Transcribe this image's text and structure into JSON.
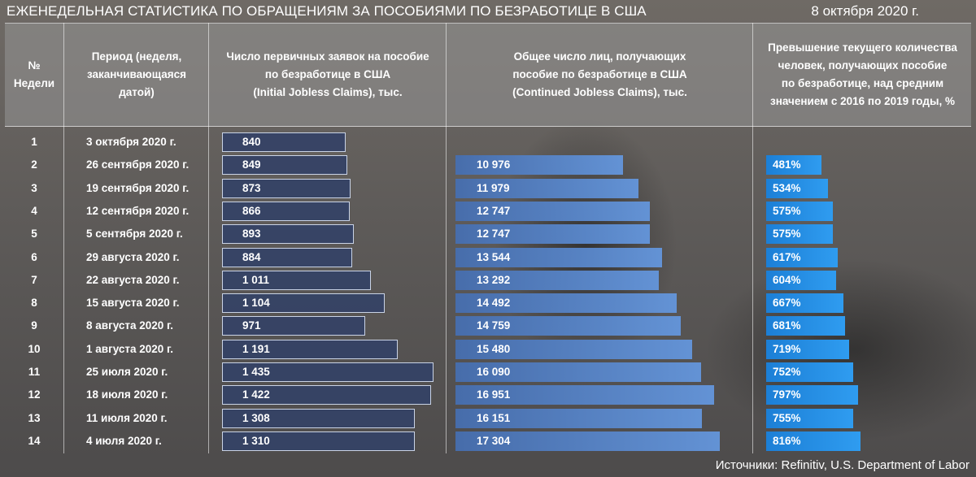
{
  "title": "ЕЖЕНЕДЕЛЬНАЯ СТАТИСТИКА ПО ОБРАЩЕНИЯМ ЗА ПОСОБИЯМИ ПО БЕЗРАБОТИЦЕ В США",
  "date": "8 октября 2020 г.",
  "headers": {
    "week_no": [
      "№",
      "Недели"
    ],
    "period": [
      "Период  (неделя,",
      "заканчивающаяся",
      "датой)"
    ],
    "initial": [
      "Число первичных заявок на пособие",
      "по безработице в США",
      "(Initial Jobless Claims), тыс."
    ],
    "continued": [
      "Общее число лиц, получающих",
      "пособие по безработице в США",
      "(Continued Jobless Claims), тыс."
    ],
    "excess": [
      "Превышение текущего количества",
      "человек, получающих пособие",
      "по безработице, над средним",
      "значением с 2016 по 2019 годы, %"
    ]
  },
  "source": "Источники: Refinitiv, U.S. Department of Labor",
  "colors": {
    "initial_bar": "#3e4d72",
    "continued_bar": "#5b87c8",
    "excess_bar": "#2a8de0"
  },
  "chart_data": {
    "type": "table",
    "rows": [
      {
        "week": "1",
        "period": "3 октября 2020 г.",
        "initial": 840,
        "initial_label": "840",
        "continued": null,
        "continued_label": "",
        "excess": null,
        "excess_label": ""
      },
      {
        "week": "2",
        "period": "26 сентября 2020 г.",
        "initial": 849,
        "initial_label": "849",
        "continued": 10976,
        "continued_label": "10 976",
        "excess": 481,
        "excess_label": "481%"
      },
      {
        "week": "3",
        "period": "19 сентября 2020 г.",
        "initial": 873,
        "initial_label": "873",
        "continued": 11979,
        "continued_label": "11 979",
        "excess": 534,
        "excess_label": "534%"
      },
      {
        "week": "4",
        "period": "12 сентября 2020 г.",
        "initial": 866,
        "initial_label": "866",
        "continued": 12747,
        "continued_label": "12 747",
        "excess": 575,
        "excess_label": "575%"
      },
      {
        "week": "5",
        "period": "5 сентября 2020 г.",
        "initial": 893,
        "initial_label": "893",
        "continued": 12747,
        "continued_label": "12 747",
        "excess": 575,
        "excess_label": "575%"
      },
      {
        "week": "6",
        "period": "29 августа 2020 г.",
        "initial": 884,
        "initial_label": "884",
        "continued": 13544,
        "continued_label": "13 544",
        "excess": 617,
        "excess_label": "617%"
      },
      {
        "week": "7",
        "period": "22 августа 2020 г.",
        "initial": 1011,
        "initial_label": "1 011",
        "continued": 13292,
        "continued_label": "13 292",
        "excess": 604,
        "excess_label": "604%"
      },
      {
        "week": "8",
        "period": "15 августа 2020 г.",
        "initial": 1104,
        "initial_label": "1 104",
        "continued": 14492,
        "continued_label": "14 492",
        "excess": 667,
        "excess_label": "667%"
      },
      {
        "week": "9",
        "period": "8 августа 2020 г.",
        "initial": 971,
        "initial_label": "971",
        "continued": 14759,
        "continued_label": "14 759",
        "excess": 681,
        "excess_label": "681%"
      },
      {
        "week": "10",
        "period": "1 августа 2020 г.",
        "initial": 1191,
        "initial_label": "1 191",
        "continued": 15480,
        "continued_label": "15 480",
        "excess": 719,
        "excess_label": "719%"
      },
      {
        "week": "11",
        "period": "25 июля 2020 г.",
        "initial": 1435,
        "initial_label": "1 435",
        "continued": 16090,
        "continued_label": "16 090",
        "excess": 752,
        "excess_label": "752%"
      },
      {
        "week": "12",
        "period": "18 июля 2020 г.",
        "initial": 1422,
        "initial_label": "1 422",
        "continued": 16951,
        "continued_label": "16 951",
        "excess": 797,
        "excess_label": "797%"
      },
      {
        "week": "13",
        "period": "11 июля 2020 г.",
        "initial": 1308,
        "initial_label": "1 308",
        "continued": 16151,
        "continued_label": "16 151",
        "excess": 755,
        "excess_label": "755%"
      },
      {
        "week": "14",
        "period": "4 июля 2020 г.",
        "initial": 1310,
        "initial_label": "1 310",
        "continued": 17304,
        "continued_label": "17 304",
        "excess": 816,
        "excess_label": "816%"
      }
    ]
  }
}
